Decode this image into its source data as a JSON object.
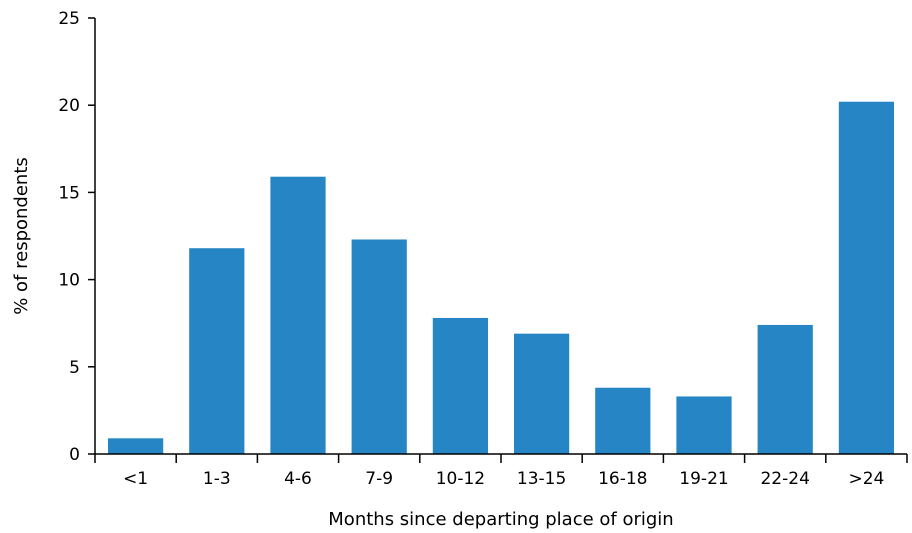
{
  "chart_data": {
    "type": "bar",
    "title": "",
    "xlabel": "Months since departing place of origin",
    "ylabel": "% of respondents",
    "categories": [
      "<1",
      "1-3",
      "4-6",
      "7-9",
      "10-12",
      "13-15",
      "16-18",
      "19-21",
      "22-24",
      ">24"
    ],
    "values": [
      0.9,
      11.8,
      15.9,
      12.3,
      7.8,
      6.9,
      3.8,
      3.3,
      7.4,
      20.2
    ],
    "ylim": [
      0,
      25
    ],
    "yticks": [
      "0",
      "5",
      "10",
      "15",
      "20",
      "25"
    ],
    "grid": false,
    "legend": "none",
    "bar_color": "#2685c4",
    "axis_color": "#000000"
  }
}
